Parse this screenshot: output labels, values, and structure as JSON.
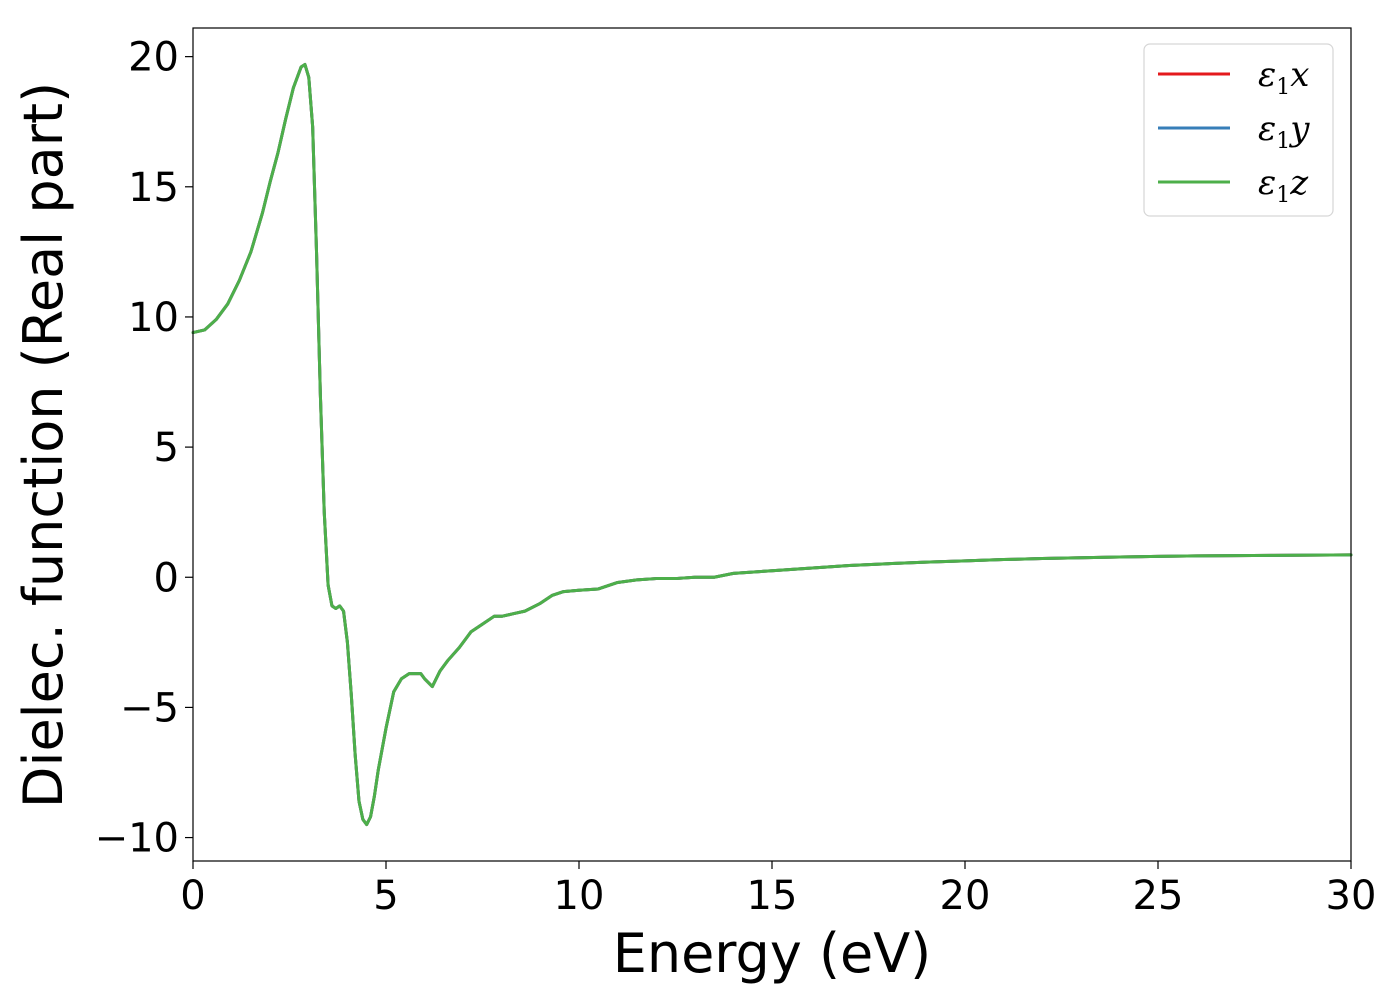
{
  "chart_data": {
    "type": "line",
    "title": "",
    "xlabel": "Energy (eV)",
    "ylabel": "Dielec. function (Real part)",
    "xlim": [
      0,
      30
    ],
    "ylim": [
      -10.9,
      21.1
    ],
    "xticks": [
      0,
      5,
      10,
      15,
      20,
      25,
      30
    ],
    "xtick_labels": [
      "0",
      "5",
      "10",
      "15",
      "20",
      "25",
      "30"
    ],
    "yticks": [
      -10,
      -5,
      0,
      5,
      10,
      15,
      20
    ],
    "ytick_labels": [
      "−10",
      "−5",
      "0",
      "5",
      "10",
      "15",
      "20"
    ],
    "grid": false,
    "legend_placement": "top-right",
    "x": [
      0,
      0.3,
      0.6,
      0.9,
      1.2,
      1.5,
      1.8,
      2.0,
      2.2,
      2.4,
      2.6,
      2.8,
      2.9,
      3.0,
      3.1,
      3.2,
      3.3,
      3.4,
      3.5,
      3.6,
      3.7,
      3.8,
      3.9,
      4.0,
      4.1,
      4.2,
      4.3,
      4.4,
      4.5,
      4.6,
      4.7,
      4.8,
      5.0,
      5.2,
      5.4,
      5.6,
      5.9,
      6.0,
      6.2,
      6.4,
      6.6,
      6.9,
      7.2,
      7.5,
      7.8,
      8.0,
      8.3,
      8.6,
      9.0,
      9.3,
      9.6,
      10.0,
      10.5,
      11.0,
      11.5,
      12.0,
      12.5,
      13.0,
      13.5,
      14.0,
      15.0,
      16.0,
      17.0,
      18.0,
      19.0,
      20.0,
      21.0,
      22.0,
      23.0,
      24.0,
      25.0,
      26.0,
      27.0,
      28.0,
      29.0,
      30.0
    ],
    "series": [
      {
        "name": "ε₁x",
        "color": "#e41a1c",
        "values": [
          9.4,
          9.5,
          9.9,
          10.5,
          11.4,
          12.5,
          14.0,
          15.2,
          16.3,
          17.6,
          18.8,
          19.6,
          19.7,
          19.2,
          17.3,
          12.5,
          7.0,
          2.5,
          -0.3,
          -1.1,
          -1.2,
          -1.1,
          -1.3,
          -2.5,
          -4.5,
          -6.8,
          -8.6,
          -9.3,
          -9.5,
          -9.2,
          -8.4,
          -7.4,
          -5.8,
          -4.4,
          -3.9,
          -3.7,
          -3.7,
          -3.9,
          -4.2,
          -3.6,
          -3.2,
          -2.7,
          -2.1,
          -1.8,
          -1.5,
          -1.5,
          -1.4,
          -1.3,
          -1.0,
          -0.7,
          -0.55,
          -0.5,
          -0.45,
          -0.2,
          -0.1,
          -0.05,
          -0.05,
          0.0,
          0.0,
          0.15,
          0.25,
          0.35,
          0.45,
          0.52,
          0.58,
          0.63,
          0.68,
          0.72,
          0.75,
          0.78,
          0.8,
          0.82,
          0.83,
          0.84,
          0.85,
          0.86
        ]
      },
      {
        "name": "ε₁y",
        "color": "#377eb8",
        "values": [
          9.4,
          9.5,
          9.9,
          10.5,
          11.4,
          12.5,
          14.0,
          15.2,
          16.3,
          17.6,
          18.8,
          19.6,
          19.7,
          19.2,
          17.3,
          12.5,
          7.0,
          2.5,
          -0.3,
          -1.1,
          -1.2,
          -1.1,
          -1.3,
          -2.5,
          -4.5,
          -6.8,
          -8.6,
          -9.3,
          -9.5,
          -9.2,
          -8.4,
          -7.4,
          -5.8,
          -4.4,
          -3.9,
          -3.7,
          -3.7,
          -3.9,
          -4.2,
          -3.6,
          -3.2,
          -2.7,
          -2.1,
          -1.8,
          -1.5,
          -1.5,
          -1.4,
          -1.3,
          -1.0,
          -0.7,
          -0.55,
          -0.5,
          -0.45,
          -0.2,
          -0.1,
          -0.05,
          -0.05,
          0.0,
          0.0,
          0.15,
          0.25,
          0.35,
          0.45,
          0.52,
          0.58,
          0.63,
          0.68,
          0.72,
          0.75,
          0.78,
          0.8,
          0.82,
          0.83,
          0.84,
          0.85,
          0.86
        ]
      },
      {
        "name": "ε₁z",
        "color": "#4daf4a",
        "values": [
          9.4,
          9.5,
          9.9,
          10.5,
          11.4,
          12.5,
          14.0,
          15.2,
          16.3,
          17.6,
          18.8,
          19.6,
          19.7,
          19.2,
          17.3,
          12.5,
          7.0,
          2.5,
          -0.3,
          -1.1,
          -1.2,
          -1.1,
          -1.3,
          -2.5,
          -4.5,
          -6.8,
          -8.6,
          -9.3,
          -9.5,
          -9.2,
          -8.4,
          -7.4,
          -5.8,
          -4.4,
          -3.9,
          -3.7,
          -3.7,
          -3.9,
          -4.2,
          -3.6,
          -3.2,
          -2.7,
          -2.1,
          -1.8,
          -1.5,
          -1.5,
          -1.4,
          -1.3,
          -1.0,
          -0.7,
          -0.55,
          -0.5,
          -0.45,
          -0.2,
          -0.1,
          -0.05,
          -0.05,
          0.0,
          0.0,
          0.15,
          0.25,
          0.35,
          0.45,
          0.52,
          0.58,
          0.63,
          0.68,
          0.72,
          0.75,
          0.78,
          0.8,
          0.82,
          0.83,
          0.84,
          0.85,
          0.86
        ]
      }
    ],
    "legend": [
      {
        "symbol": "ε",
        "sub": "1",
        "axis": "x"
      },
      {
        "symbol": "ε",
        "sub": "1",
        "axis": "y"
      },
      {
        "symbol": "ε",
        "sub": "1",
        "axis": "z"
      }
    ]
  }
}
